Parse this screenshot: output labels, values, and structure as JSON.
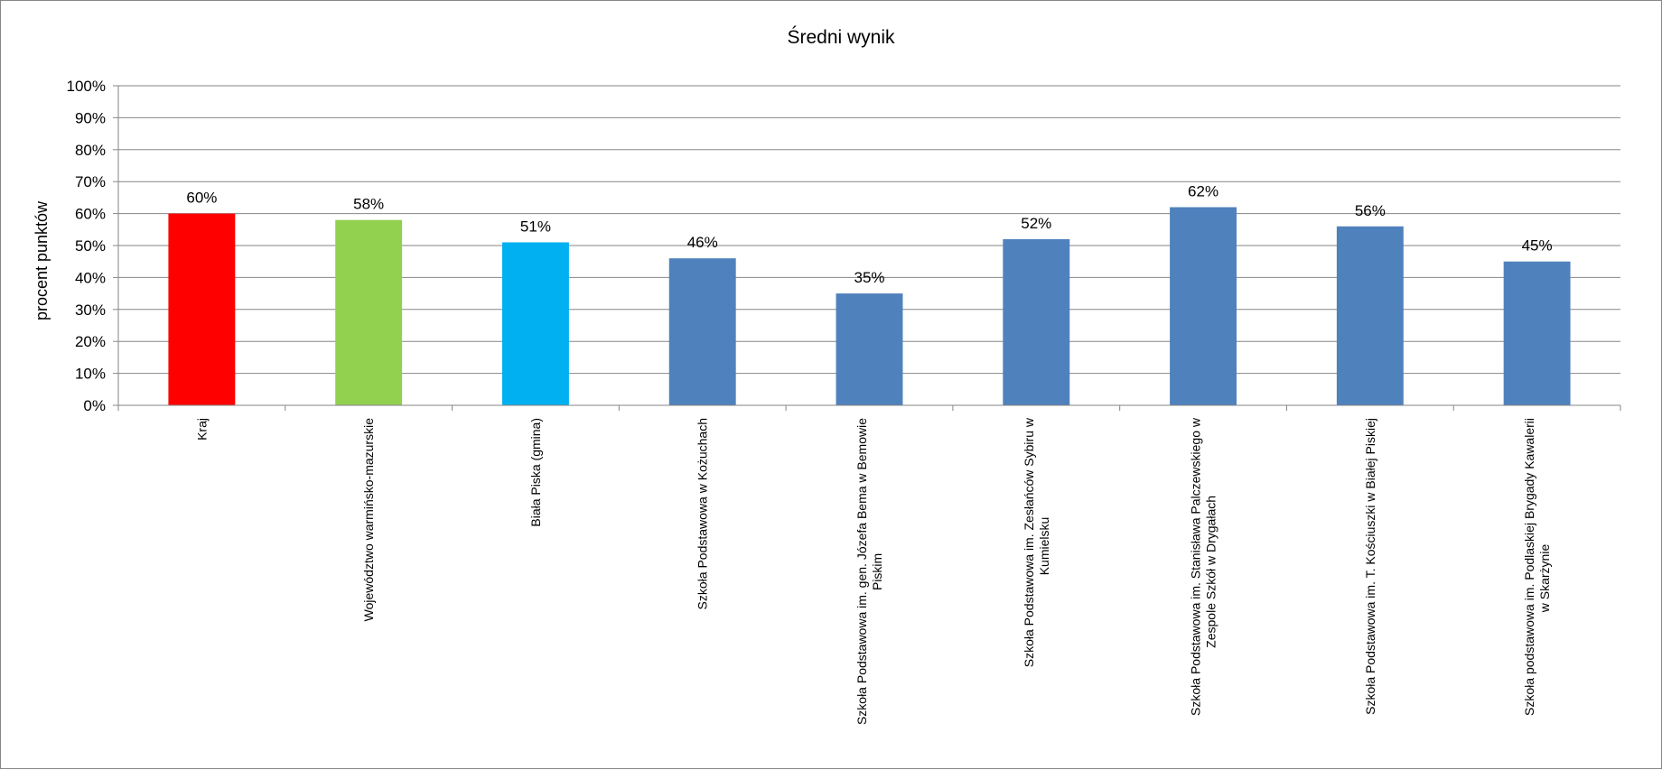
{
  "chart_data": {
    "type": "bar",
    "title": "Średni wynik",
    "xlabel": "",
    "ylabel": "procent punktów",
    "ylim": [
      0,
      100
    ],
    "yticks": [
      "0%",
      "10%",
      "20%",
      "30%",
      "40%",
      "50%",
      "60%",
      "70%",
      "80%",
      "90%",
      "100%"
    ],
    "grid": true,
    "legend": "none",
    "categories": [
      [
        "Kraj"
      ],
      [
        "Województwo warmińsko-mazurskie"
      ],
      [
        "Biała Piska (gmina)"
      ],
      [
        "Szkoła Podstawowa w Kożuchach"
      ],
      [
        "Szkoła Podstawowa im. gen. Józefa Bema w Bemowie",
        "Piskim"
      ],
      [
        "Szkoła Podstawowa im. Zesłańców Sybiru w",
        "Kumielsku"
      ],
      [
        "Szkoła Podstawowa im. Stanisława Palczewskiego w",
        "Zespole Szkół w Drygałach"
      ],
      [
        "Szkoła Podstawowa im. T. Kościuszki w Białej Piskiej"
      ],
      [
        "Szkoła podstawowa im. Podlaskiej Brygady Kawalerii",
        "w Skarżynie"
      ]
    ],
    "values": [
      60,
      58,
      51,
      46,
      35,
      52,
      62,
      56,
      45
    ],
    "value_labels": [
      "60%",
      "58%",
      "51%",
      "46%",
      "35%",
      "52%",
      "62%",
      "56%",
      "45%"
    ],
    "colors": [
      "#ff0000",
      "#92d050",
      "#00b0f0",
      "#4f81bd",
      "#4f81bd",
      "#4f81bd",
      "#4f81bd",
      "#4f81bd",
      "#4f81bd"
    ],
    "gridline_color": "#868686"
  }
}
